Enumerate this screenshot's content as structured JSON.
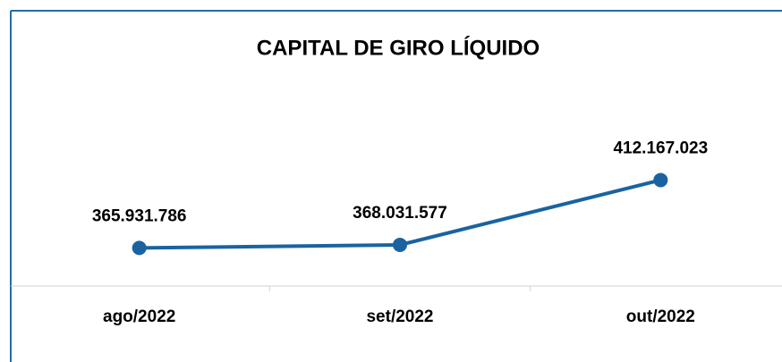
{
  "chart_data": {
    "type": "line",
    "title": "CAPITAL DE GIRO LÍQUIDO",
    "categories": [
      "ago/2022",
      "set/2022",
      "out/2022"
    ],
    "series": [
      {
        "name": "Capital de Giro Líquido",
        "color": "#1a63a0",
        "values": [
          365931786,
          368031577,
          412167023
        ],
        "value_labels": [
          "365.931.786",
          "368.031.577",
          "412.167.023"
        ]
      }
    ],
    "ylim": [
      340000000,
      480000000
    ]
  }
}
